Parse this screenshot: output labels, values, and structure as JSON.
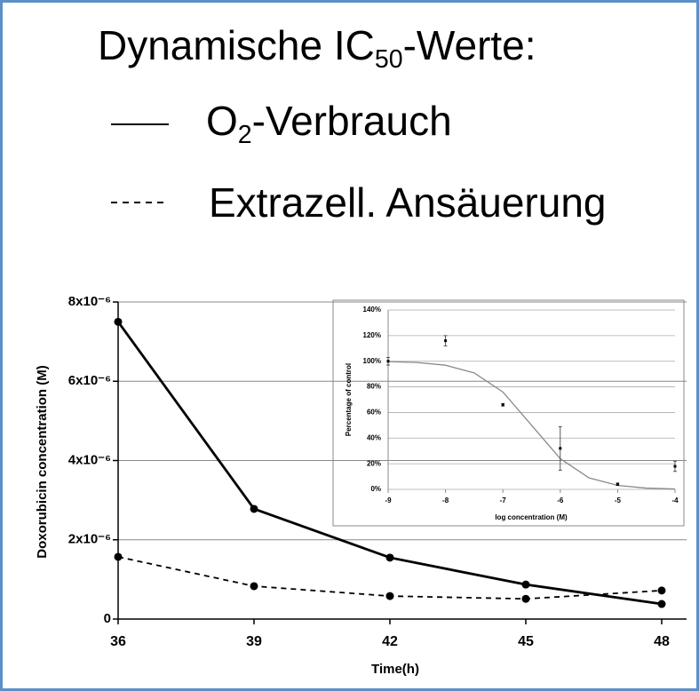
{
  "chart_data": [
    {
      "type": "line",
      "title": [
        "Dynamische IC",
        "50",
        "-Werte:"
      ],
      "xlabel": "Time(h)",
      "ylabel": "Doxorubicin concentration (M)",
      "x": [
        36,
        39,
        42,
        45,
        48
      ],
      "xlim": [
        36,
        48
      ],
      "xticks": [
        36,
        39,
        42,
        45,
        48
      ],
      "ylim": [
        0,
        8e-06
      ],
      "yticks": [
        0,
        {
          "value": 2e-06,
          "label": "2x10⁻⁶"
        },
        {
          "value": 4e-06,
          "label": "4x10⁻⁶"
        },
        {
          "value": 6e-06,
          "label": "6x10⁻⁶"
        },
        {
          "value": 8e-06,
          "label": "8x10⁻⁶"
        }
      ],
      "grid": true,
      "series": [
        {
          "name": [
            "O",
            "2",
            "-Verbrauch"
          ],
          "color": "#000000",
          "dash": false,
          "values": [
            7.5e-06,
            2.78e-06,
            1.55e-06,
            8.7e-07,
            3.8e-07
          ]
        },
        {
          "name": [
            "Extrazell. Ansäuerung"
          ],
          "color": "#000000",
          "dash": true,
          "values": [
            1.57e-06,
            8.3e-07,
            5.8e-07,
            5.1e-07,
            7.2e-07
          ]
        }
      ]
    },
    {
      "type": "scatter",
      "xlabel": "log concentration (M)",
      "ylabel": "Percentage of control",
      "x": [
        -9,
        -8,
        -7,
        -6,
        -5,
        -4
      ],
      "values": [
        100,
        116,
        66,
        32,
        4,
        18
      ],
      "errors": [
        3,
        4,
        1,
        17,
        1,
        4
      ],
      "color": "#000000",
      "curve_x": [
        -9,
        -8.5,
        -8,
        -7.5,
        -7,
        -6.5,
        -6,
        -5.5,
        -5,
        -4.5,
        -4
      ],
      "curve_values": [
        99.7,
        99,
        96.9,
        90.9,
        76,
        50,
        24,
        9,
        3.1,
        1,
        0.3
      ],
      "curve_color": "#8a8a8a",
      "xlim": [
        -9,
        -4
      ],
      "xticks": [
        -9,
        -8,
        -7,
        -6,
        -5,
        -4
      ],
      "ylim": [
        0,
        140
      ],
      "yticks": [
        {
          "value": 0,
          "label": "0%"
        },
        {
          "value": 20,
          "label": "20%"
        },
        {
          "value": 40,
          "label": "40%"
        },
        {
          "value": 60,
          "label": "60%"
        },
        {
          "value": 80,
          "label": "80%"
        },
        {
          "value": 100,
          "label": "100%"
        },
        {
          "value": 120,
          "label": "120%"
        },
        {
          "value": 140,
          "label": "140%"
        }
      ],
      "grid": true
    }
  ]
}
